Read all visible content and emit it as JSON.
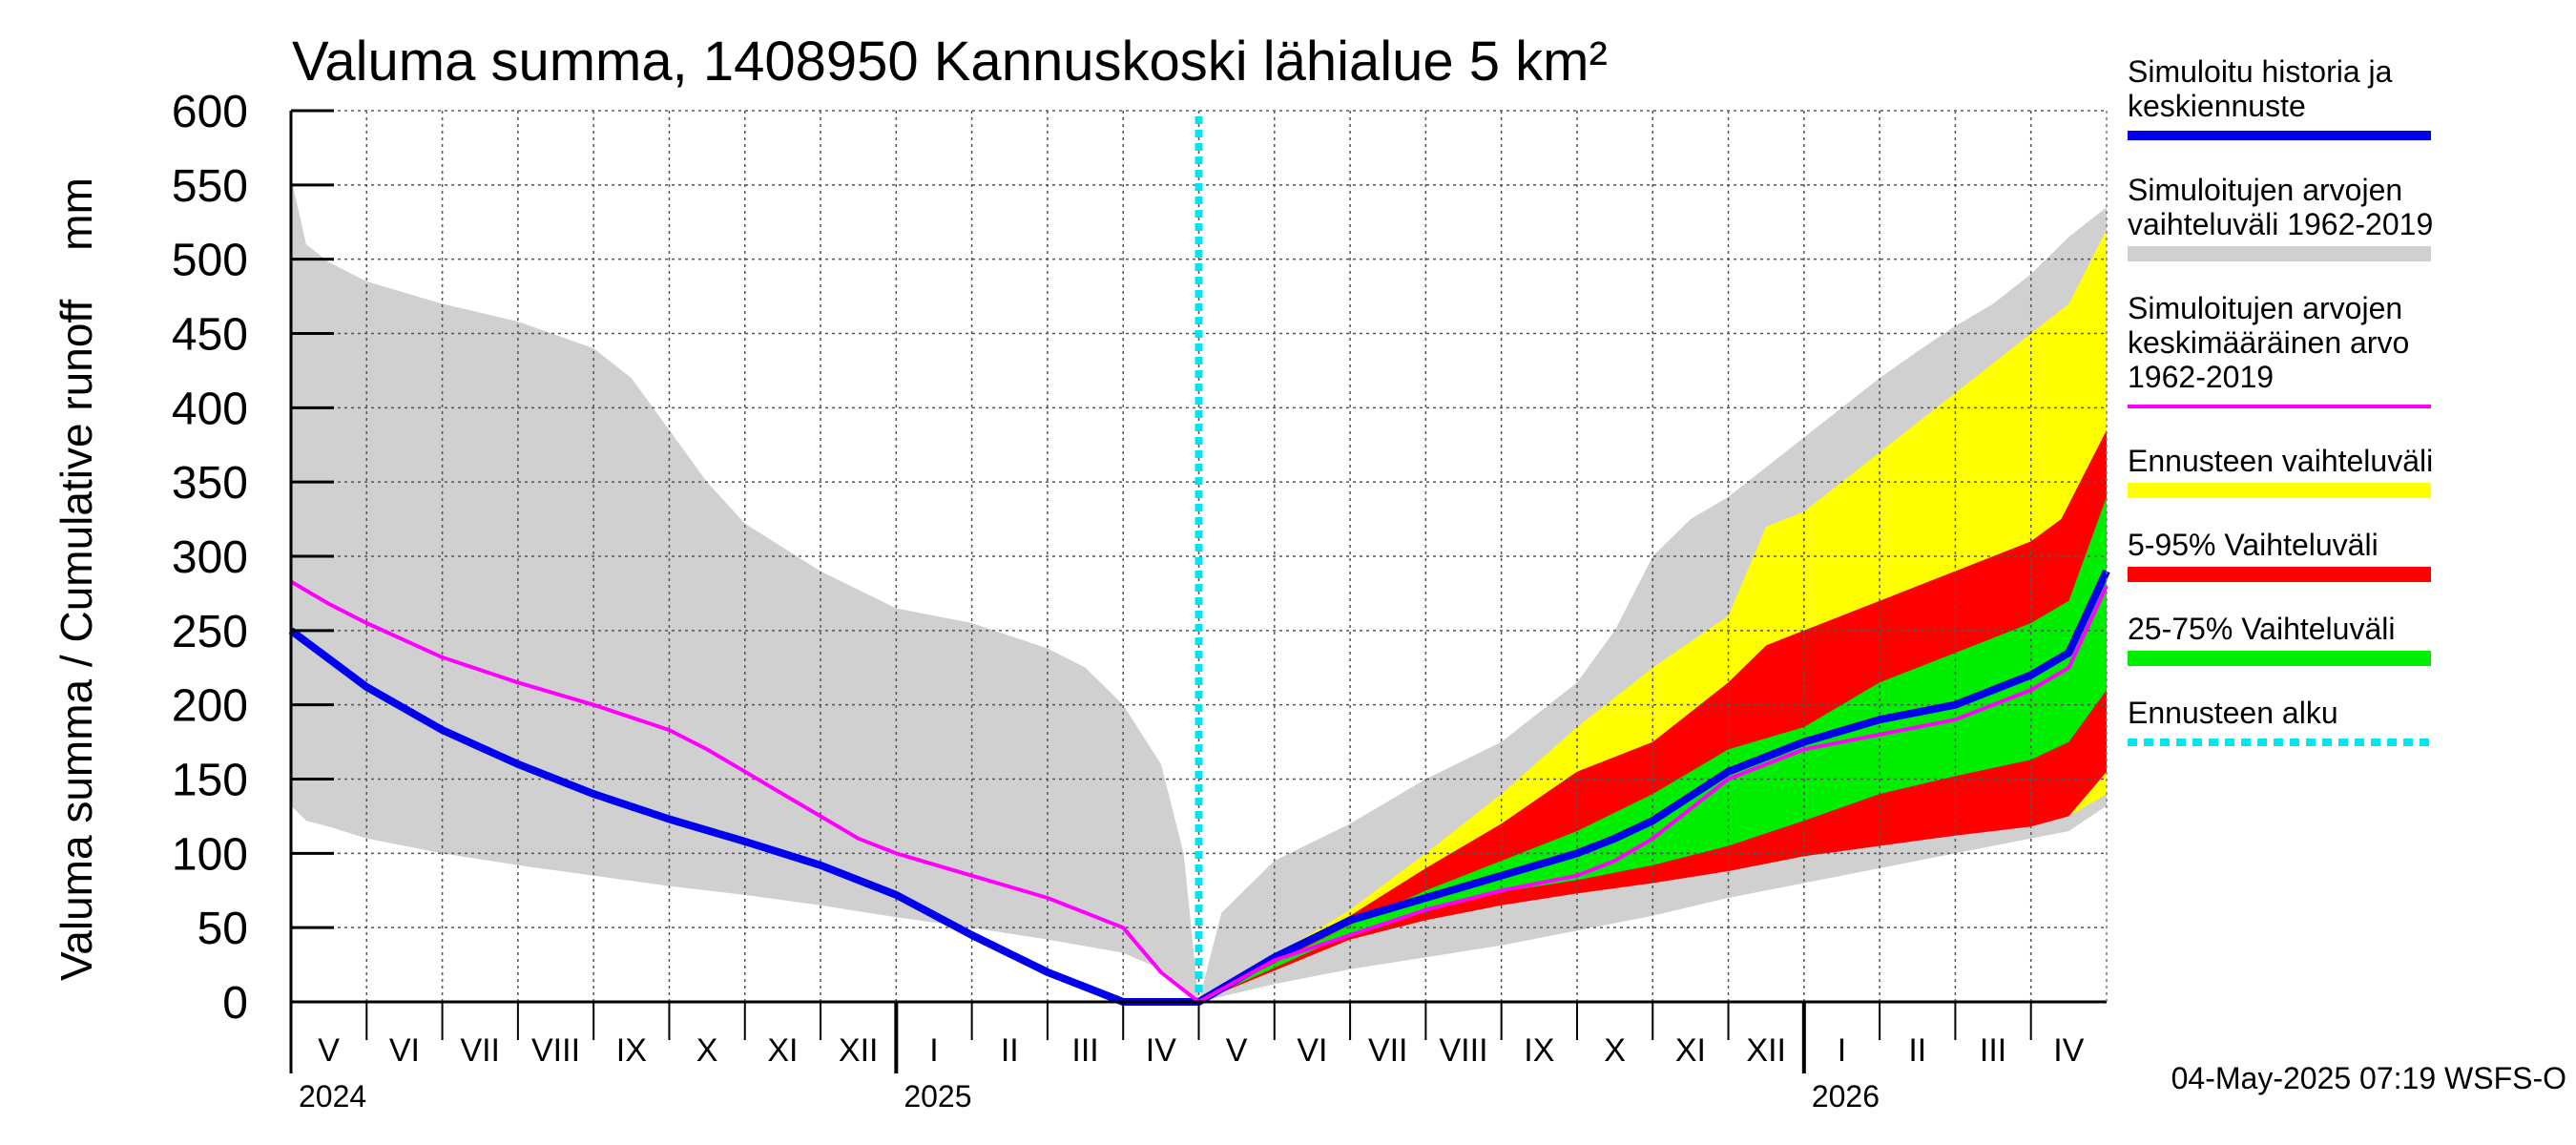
{
  "chart_data": {
    "type": "area",
    "title": "Valuma summa, 1408950 Kannuskoski lähialue 5 km²",
    "ylabel": "Valuma summa / Cumulative runoff    mm",
    "ylim": [
      0,
      600
    ],
    "yticks": [
      0,
      50,
      100,
      150,
      200,
      250,
      300,
      350,
      400,
      450,
      500,
      550,
      600
    ],
    "x_unit": "months since 2024-05-01",
    "xlim": [
      0,
      24
    ],
    "forecast_start": 12,
    "months": [
      "V",
      "VI",
      "VII",
      "VIII",
      "IX",
      "X",
      "XI",
      "XII",
      "I",
      "II",
      "III",
      "IV",
      "V",
      "VI",
      "VII",
      "VIII",
      "IX",
      "X",
      "XI",
      "XII",
      "I",
      "II",
      "III",
      "IV"
    ],
    "years": [
      {
        "label": "2024",
        "at": 0
      },
      {
        "label": "2025",
        "at": 8
      },
      {
        "label": "2026",
        "at": 20
      }
    ],
    "timestamp": "04-May-2025 07:19 WSFS-O",
    "legend": [
      {
        "key": "sim_hist",
        "lines": [
          "Simuloitu historia ja",
          "keskiennuste"
        ],
        "color": "#0000ee",
        "style": "line"
      },
      {
        "key": "range_hist",
        "lines": [
          "Simuloitujen arvojen",
          "vaihteluväli 1962-2019"
        ],
        "color": "#d0d0d0",
        "style": "band"
      },
      {
        "key": "mean_hist",
        "lines": [
          "Simuloitujen arvojen",
          "keskimääräinen arvo",
          "   1962-2019"
        ],
        "color": "#ff00ff",
        "style": "thin"
      },
      {
        "key": "range_fc",
        "lines": [
          "Ennusteen vaihteluväli"
        ],
        "color": "#ffff00",
        "style": "band"
      },
      {
        "key": "p5_95",
        "lines": [
          "5-95% Vaihteluväli"
        ],
        "color": "#ff0000",
        "style": "band"
      },
      {
        "key": "p25_75",
        "lines": [
          "25-75% Vaihteluväli"
        ],
        "color": "#00ee00",
        "style": "band"
      },
      {
        "key": "fc_start",
        "lines": [
          "Ennusteen alku"
        ],
        "color": "#00e5ee",
        "style": "dotted"
      }
    ],
    "series": [
      {
        "name": "Simuloitujen arvojen vaihteluväli 1962-2019 (upper)",
        "x": [
          0,
          0.2,
          0.5,
          1,
          2,
          3,
          4,
          4.5,
          5,
          5.5,
          6,
          7,
          8,
          9,
          10,
          10.5,
          11,
          11.5,
          11.8,
          12
        ],
        "values": [
          555,
          510,
          498,
          485,
          470,
          458,
          440,
          420,
          385,
          350,
          322,
          290,
          265,
          255,
          238,
          225,
          200,
          160,
          100,
          0
        ]
      },
      {
        "name": "Simuloitujen arvojen vaihteluväli 1962-2019 (lower)",
        "x": [
          0,
          0.2,
          0.5,
          1,
          2,
          3,
          4,
          5,
          6,
          7,
          8,
          9,
          10,
          11,
          11.5,
          11.8,
          12
        ],
        "values": [
          132,
          122,
          118,
          110,
          100,
          92,
          85,
          78,
          72,
          65,
          57,
          50,
          42,
          33,
          22,
          10,
          0
        ]
      },
      {
        "name": "Simuloitujen arvojen vaihteluväli 1962-2019 (upper, forecast period)",
        "x": [
          12,
          12.1,
          12.3,
          13,
          14,
          15,
          16,
          17,
          17.5,
          18,
          18.5,
          19,
          19.5,
          20,
          20.5,
          21,
          21.5,
          22,
          22.5,
          23,
          23.5,
          24
        ],
        "values": [
          0,
          20,
          60,
          95,
          120,
          150,
          175,
          215,
          250,
          300,
          325,
          340,
          360,
          380,
          400,
          420,
          438,
          455,
          470,
          490,
          515,
          535
        ]
      },
      {
        "name": "Simuloitujen arvojen vaihteluväli 1962-2019 (lower, forecast period)",
        "x": [
          12,
          13,
          14,
          15,
          16,
          17,
          18,
          19,
          20,
          21,
          22,
          23,
          23.5,
          24
        ],
        "values": [
          0,
          12,
          22,
          30,
          38,
          48,
          58,
          70,
          80,
          90,
          100,
          110,
          115,
          132
        ]
      },
      {
        "name": "Ennusteen vaihteluväli (upper)",
        "x": [
          12,
          14,
          15,
          16,
          17,
          18,
          19,
          19.5,
          20,
          21,
          22,
          23,
          23.5,
          24
        ],
        "values": [
          0,
          62,
          100,
          140,
          185,
          225,
          260,
          320,
          330,
          370,
          410,
          450,
          470,
          520
        ]
      },
      {
        "name": "Ennusteen vaihteluväli (lower)",
        "x": [
          12,
          14,
          15,
          16,
          17,
          18,
          19,
          20,
          21,
          22,
          23,
          23.5,
          24
        ],
        "values": [
          0,
          45,
          58,
          68,
          75,
          82,
          90,
          100,
          108,
          115,
          122,
          125,
          140
        ]
      },
      {
        "name": "5-95% Vaihteluväli (upper)",
        "x": [
          12,
          14,
          15,
          16,
          17,
          18,
          19,
          19.5,
          20,
          21,
          22,
          23,
          23.4,
          24
        ],
        "values": [
          0,
          58,
          90,
          120,
          155,
          175,
          215,
          240,
          250,
          270,
          290,
          310,
          325,
          385
        ]
      },
      {
        "name": "5-95% Vaihteluväli (lower)",
        "x": [
          12,
          14,
          15,
          16,
          17,
          18,
          19,
          20,
          21,
          22,
          23,
          23.5,
          24
        ],
        "values": [
          0,
          42,
          55,
          65,
          73,
          80,
          88,
          98,
          105,
          112,
          118,
          125,
          155
        ]
      },
      {
        "name": "25-75% Vaihteluväli (upper)",
        "x": [
          12,
          14,
          15,
          16,
          17,
          18,
          19,
          20,
          21,
          22,
          23,
          23.5,
          24
        ],
        "values": [
          0,
          52,
          75,
          95,
          115,
          140,
          170,
          185,
          215,
          235,
          255,
          270,
          340
        ]
      },
      {
        "name": "25-75% Vaihteluväli (lower)",
        "x": [
          12,
          14,
          15,
          16,
          17,
          18,
          19,
          20,
          21,
          22,
          23,
          23.5,
          24
        ],
        "values": [
          0,
          46,
          62,
          74,
          82,
          92,
          105,
          122,
          140,
          152,
          163,
          175,
          210
        ]
      },
      {
        "name": "Simuloitu historia ja keskiennuste",
        "x": [
          0,
          1,
          2,
          3,
          4,
          5,
          6,
          7,
          8,
          9,
          10,
          11,
          12,
          13,
          14,
          15,
          16,
          17,
          17.5,
          18,
          19,
          19.5,
          20,
          21,
          22,
          23,
          23.5,
          24
        ],
        "values": [
          250,
          212,
          183,
          160,
          140,
          123,
          108,
          92,
          72,
          45,
          20,
          -5,
          0,
          30,
          55,
          70,
          85,
          100,
          110,
          122,
          155,
          165,
          175,
          190,
          200,
          220,
          235,
          290
        ]
      },
      {
        "name": "Simuloitujen arvojen keskimääräinen arvo 1962-2019",
        "x": [
          0,
          0.5,
          1,
          2,
          3,
          4,
          5,
          5.5,
          6,
          6.5,
          7,
          7.5,
          8,
          9,
          10,
          11,
          11.5,
          12,
          13,
          14,
          15,
          16,
          17,
          17.5,
          18,
          19,
          20,
          21,
          22,
          23,
          23.5,
          24
        ],
        "values": [
          283,
          268,
          255,
          232,
          215,
          200,
          183,
          170,
          155,
          140,
          125,
          110,
          100,
          85,
          70,
          50,
          20,
          0,
          28,
          45,
          62,
          75,
          85,
          95,
          110,
          150,
          170,
          180,
          190,
          210,
          225,
          280
        ]
      }
    ]
  }
}
